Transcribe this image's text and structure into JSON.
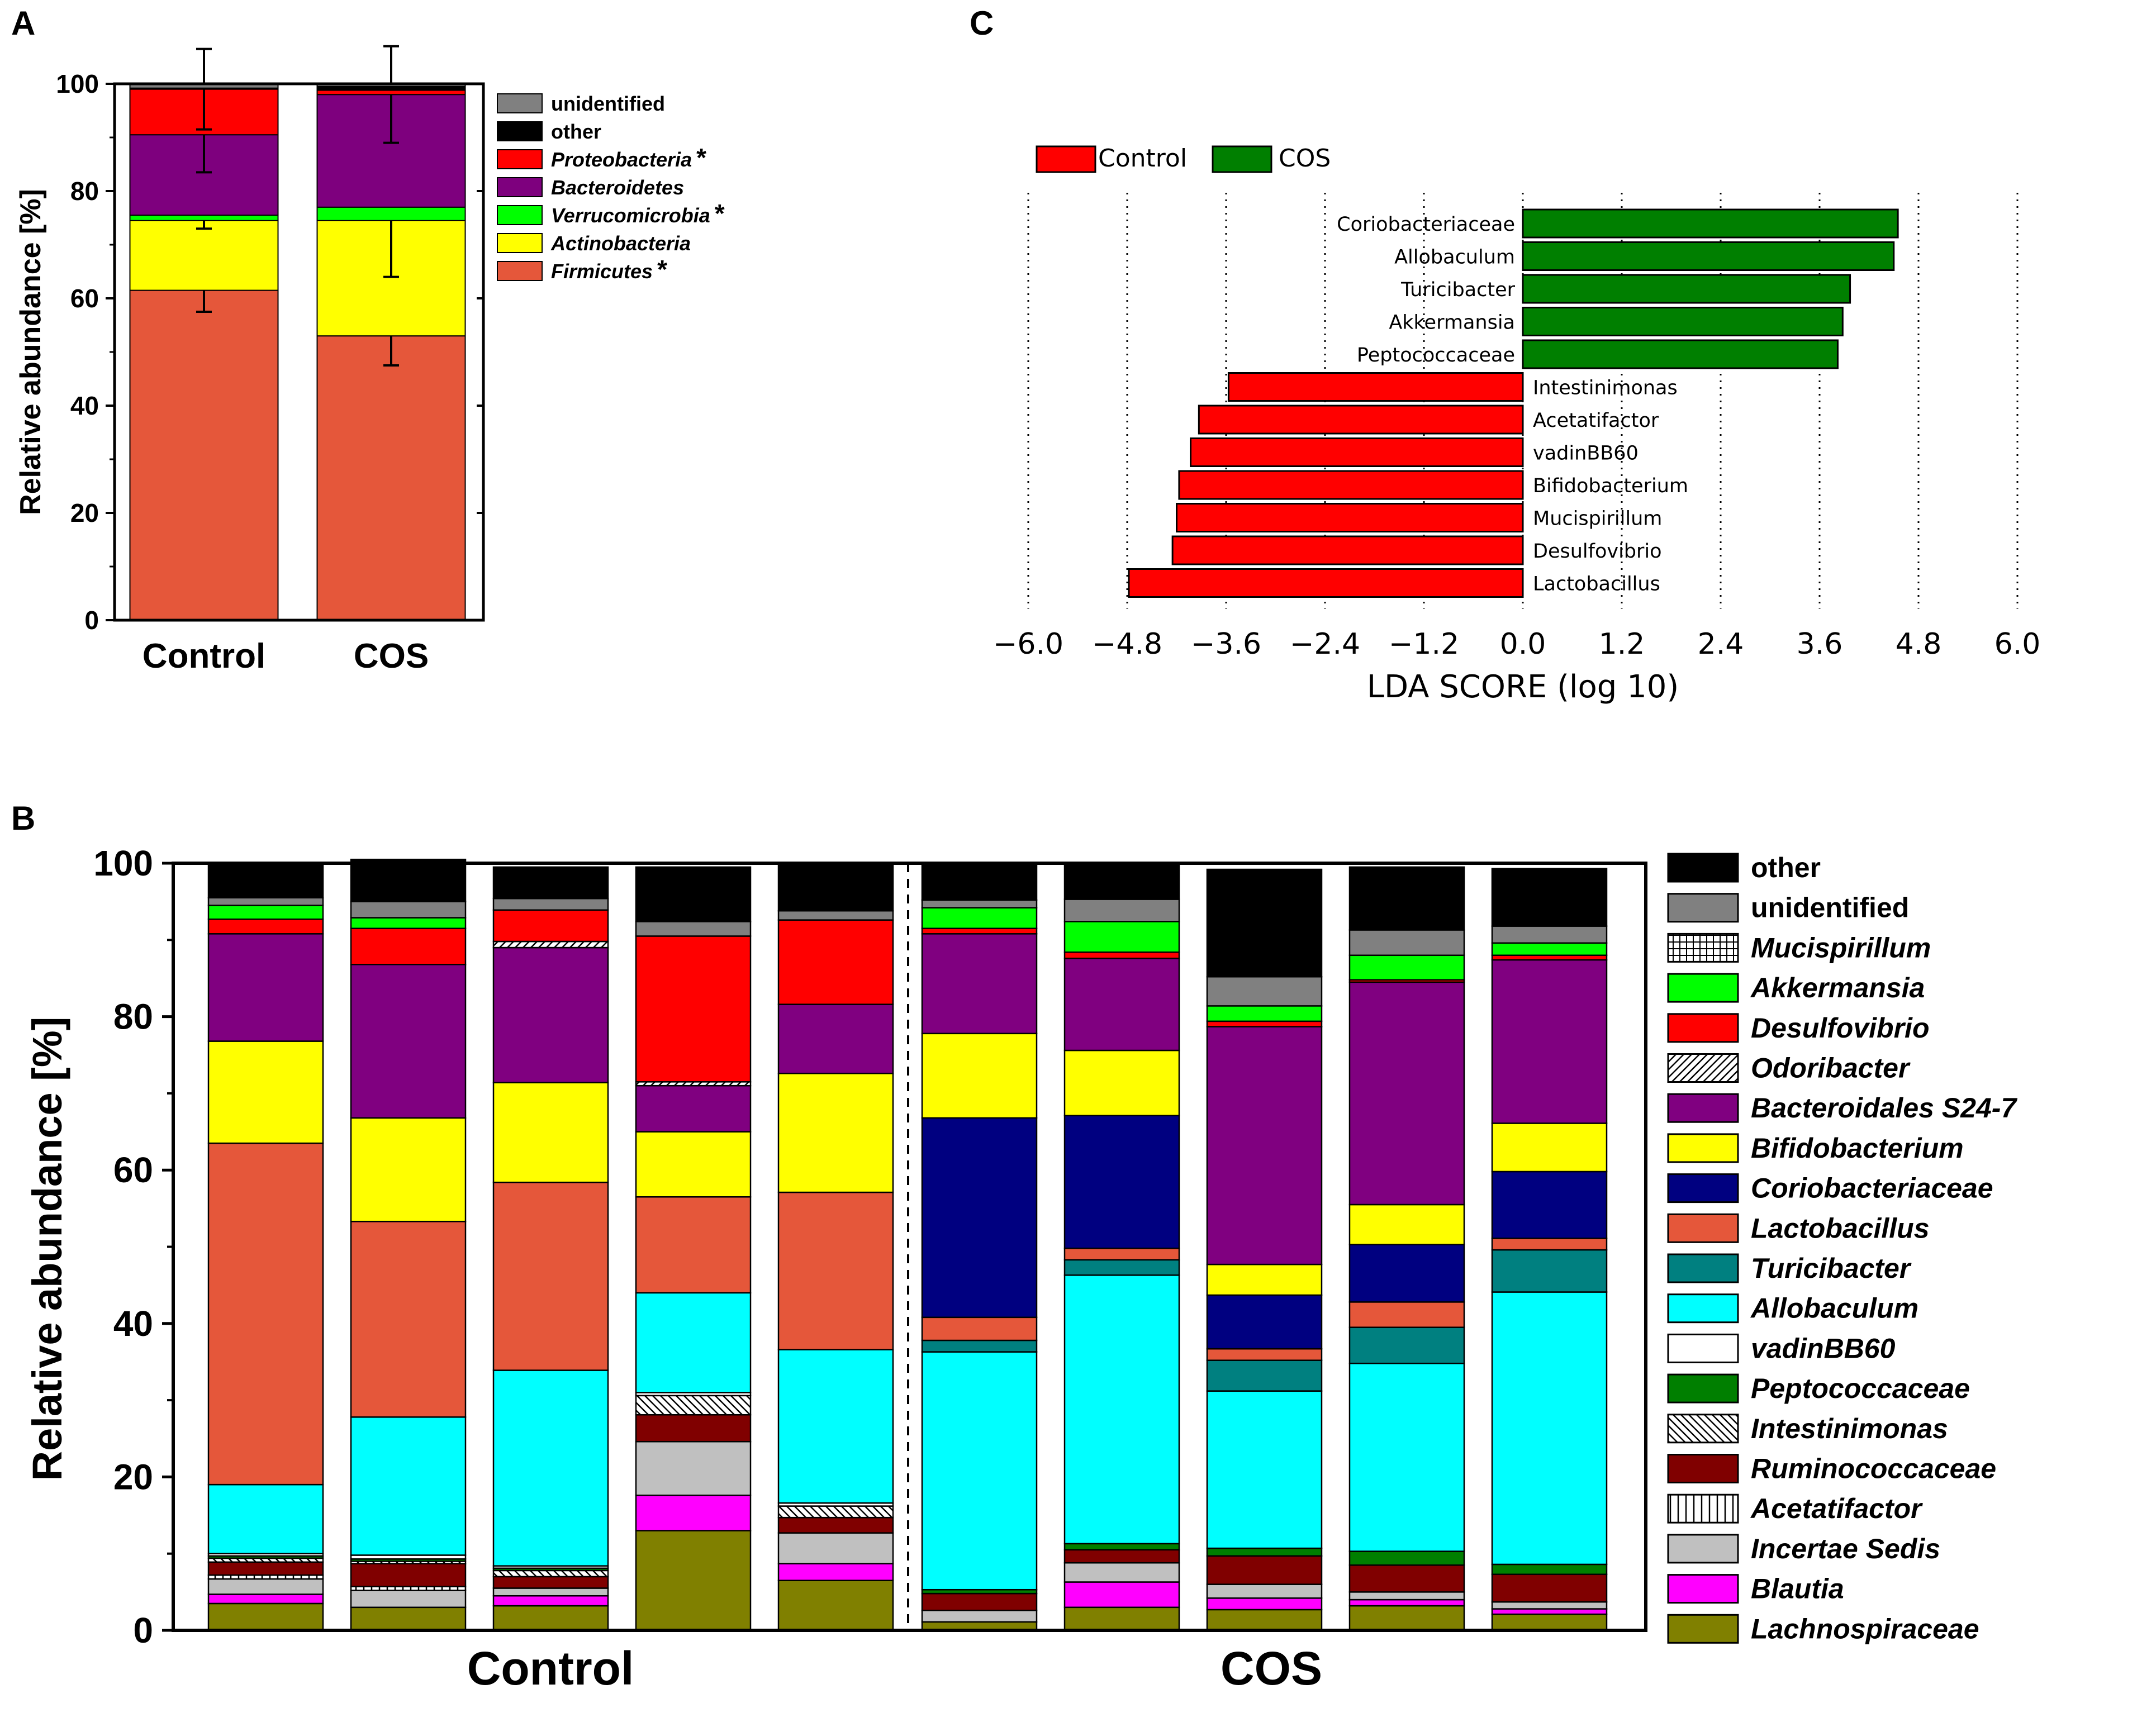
{
  "panel_letters": {
    "a": "A",
    "b": "B",
    "c": "C"
  },
  "chart_data": [
    {
      "id": "A",
      "type": "bar",
      "stacked": true,
      "ylabel": "Relative abundance [%]",
      "ylim": [
        0,
        100
      ],
      "yticks": [
        "0",
        "20",
        "40",
        "60",
        "80",
        "100"
      ],
      "categories": [
        "Control",
        "COS"
      ],
      "series": [
        {
          "name": "Firmicutes",
          "italic": true,
          "significant": true,
          "color": "#E5573A",
          "values": [
            61.5,
            53.0
          ],
          "errors": [
            4.0,
            5.5
          ]
        },
        {
          "name": "Actinobacteria",
          "italic": true,
          "significant": false,
          "color": "#FFFF00",
          "values": [
            13.0,
            21.5
          ],
          "errors": [
            1.5,
            10.5
          ]
        },
        {
          "name": "Verrucomicrobia",
          "italic": true,
          "significant": true,
          "color": "#00FF00",
          "values": [
            1.0,
            2.5
          ],
          "errors": [
            0,
            0
          ]
        },
        {
          "name": "Bacteroidetes",
          "italic": true,
          "significant": false,
          "color": "#7E007E",
          "values": [
            15.0,
            21.0
          ],
          "errors": [
            7.0,
            9.0
          ]
        },
        {
          "name": "Proteobacteria",
          "italic": true,
          "significant": true,
          "color": "#FF0000",
          "values": [
            8.5,
            0.8
          ],
          "errors": [
            7.5,
            0
          ]
        },
        {
          "name": "other",
          "italic": false,
          "significant": false,
          "color": "#000000",
          "values": [
            0.2,
            0.7
          ],
          "errors": [
            0,
            0
          ]
        },
        {
          "name": "unidentified",
          "italic": false,
          "significant": false,
          "color": "#808080",
          "values": [
            0.8,
            0.5
          ],
          "errors": [
            0,
            0
          ]
        }
      ],
      "significance_marker": "*",
      "legend_order": [
        "unidentified",
        "other",
        "Proteobacteria",
        "Bacteroidetes",
        "Verrucomicrobia",
        "Actinobacteria",
        "Firmicutes"
      ],
      "legend_position": "right"
    },
    {
      "id": "C",
      "type": "bar",
      "orientation": "horizontal",
      "xlabel": "LDA SCORE (log 10)",
      "xlim": [
        -6.0,
        6.0
      ],
      "xticks": [
        "−6.0",
        "−4.8",
        "−3.6",
        "−2.4",
        "−1.2",
        "0.0",
        "1.2",
        "2.4",
        "3.6",
        "4.8",
        "6.0"
      ],
      "legend": [
        {
          "name": "Control",
          "color": "#FF0000"
        },
        {
          "name": "COS",
          "color": "#008000"
        }
      ],
      "legend_position": "top-left",
      "grid": "vertical dotted",
      "bars": [
        {
          "name": "Coriobacteriaceae",
          "group": "COS",
          "value": 4.55
        },
        {
          "name": "Allobaculum",
          "group": "COS",
          "value": 4.5
        },
        {
          "name": "Turicibacter",
          "group": "COS",
          "value": 3.97
        },
        {
          "name": "Akkermansia",
          "group": "COS",
          "value": 3.88
        },
        {
          "name": "Peptococcaceae",
          "group": "COS",
          "value": 3.82
        },
        {
          "name": "Intestinimonas",
          "group": "Control",
          "value": -3.57
        },
        {
          "name": "Acetatifactor",
          "group": "Control",
          "value": -3.93
        },
        {
          "name": "vadinBB60",
          "group": "Control",
          "value": -4.03
        },
        {
          "name": "Bifidobacterium",
          "group": "Control",
          "value": -4.17
        },
        {
          "name": "Mucispirillum",
          "group": "Control",
          "value": -4.2
        },
        {
          "name": "Desulfovibrio",
          "group": "Control",
          "value": -4.25
        },
        {
          "name": "Lactobacillus",
          "group": "Control",
          "value": -4.78
        }
      ]
    },
    {
      "id": "B",
      "type": "bar",
      "stacked": true,
      "ylabel": "Relative abundance [%]",
      "ylim": [
        0,
        100
      ],
      "yticks": [
        "0",
        "20",
        "40",
        "60",
        "80",
        "100"
      ],
      "groups": [
        {
          "label": "Control",
          "samples": 5
        },
        {
          "label": "COS",
          "samples": 5
        }
      ],
      "taxa": [
        {
          "name": "Lachnospiraceae",
          "color": "#808000",
          "pattern": ""
        },
        {
          "name": "Blautia",
          "color": "#FF00FF",
          "pattern": ""
        },
        {
          "name": "Incertae Sedis",
          "color": "#C0C0C0",
          "pattern": ""
        },
        {
          "name": "Acetatifactor",
          "color": "#FFFFFF",
          "pattern": "vert"
        },
        {
          "name": "Ruminococcaceae",
          "color": "#800000",
          "pattern": ""
        },
        {
          "name": "Intestinimonas",
          "color": "#FFFFFF",
          "pattern": "backdiag"
        },
        {
          "name": "Peptococcaceae",
          "color": "#007F00",
          "pattern": ""
        },
        {
          "name": "vadinBB60",
          "color": "#FFFFFF",
          "pattern": ""
        },
        {
          "name": "Allobaculum",
          "color": "#00FFFF",
          "pattern": ""
        },
        {
          "name": "Turicibacter",
          "color": "#008080",
          "pattern": ""
        },
        {
          "name": "Lactobacillus",
          "color": "#E5573A",
          "pattern": ""
        },
        {
          "name": "Coriobacteriaceae",
          "color": "#000080",
          "pattern": ""
        },
        {
          "name": "Bifidobacterium",
          "color": "#FFFF00",
          "pattern": ""
        },
        {
          "name": "Bacteroidales S24-7",
          "color": "#800080",
          "pattern": ""
        },
        {
          "name": "Odoribacter",
          "color": "#FFFFFF",
          "pattern": "fwddiag"
        },
        {
          "name": "Desulfovibrio",
          "color": "#FF0000",
          "pattern": ""
        },
        {
          "name": "Akkermansia",
          "color": "#00FF00",
          "pattern": ""
        },
        {
          "name": "Mucispirillum",
          "color": "#FFFFFF",
          "pattern": "grid"
        },
        {
          "name": "unidentified",
          "color": "#808080",
          "pattern": ""
        },
        {
          "name": "other",
          "color": "#000000",
          "pattern": ""
        }
      ],
      "legend_order": [
        "other",
        "unidentified",
        "Mucispirillum",
        "Akkermansia",
        "Desulfovibrio",
        "Odoribacter",
        "Bacteroidales S24-7",
        "Bifidobacterium",
        "Coriobacteriaceae",
        "Lactobacillus",
        "Turicibacter",
        "Allobaculum",
        "vadinBB60",
        "Peptococcaceae",
        "Intestinimonas",
        "Ruminococcaceae",
        "Acetatifactor",
        "Incertae Sedis",
        "Blautia",
        "Lachnospiraceae"
      ],
      "legend_position": "right",
      "samples_values": [
        [
          3.5,
          1.2,
          2.0,
          0.5,
          1.7,
          0.5,
          0.3,
          0.3,
          9.0,
          0,
          44.5,
          0,
          13.3,
          14.0,
          0,
          1.9,
          1.8,
          0,
          1.0,
          4.5
        ],
        [
          3.0,
          0,
          2.2,
          0.5,
          3.0,
          0.3,
          0.3,
          0.5,
          18.0,
          0,
          25.5,
          0,
          13.5,
          20.0,
          0,
          4.7,
          1.4,
          0,
          2.1,
          5.5
        ],
        [
          3.2,
          1.3,
          1.0,
          0,
          1.5,
          0.8,
          0.3,
          0.3,
          25.5,
          0,
          24.5,
          0,
          13.0,
          17.6,
          0.8,
          4.1,
          0,
          0,
          1.5,
          4.1
        ],
        [
          13.0,
          4.6,
          7.0,
          0,
          3.5,
          2.5,
          0,
          0.4,
          13.0,
          0,
          12.5,
          0,
          8.5,
          6.0,
          0.5,
          19.0,
          0,
          0,
          1.9,
          7.1
        ],
        [
          6.5,
          2.2,
          4.0,
          0,
          2.0,
          1.5,
          0,
          0.4,
          20.0,
          0,
          20.5,
          0,
          15.5,
          9.0,
          0,
          11.0,
          0,
          0,
          1.2,
          6.2
        ],
        [
          1.1,
          0,
          1.5,
          0,
          2.2,
          0,
          0.5,
          0,
          31.0,
          1.5,
          3.0,
          26.0,
          11.0,
          13.0,
          0,
          0.7,
          2.7,
          0,
          1.0,
          4.8
        ],
        [
          3.0,
          3.3,
          2.5,
          0,
          1.7,
          0,
          0.8,
          0,
          35.0,
          2.0,
          1.5,
          17.3,
          8.5,
          12.0,
          0,
          0.8,
          4.0,
          0,
          2.9,
          4.7
        ],
        [
          2.7,
          1.5,
          1.8,
          0,
          3.7,
          0,
          1.0,
          0,
          20.5,
          4.0,
          1.5,
          7.0,
          4.0,
          31.0,
          0,
          0.7,
          2.0,
          0,
          3.8,
          14.0
        ],
        [
          3.2,
          0.8,
          1.0,
          0,
          3.5,
          0,
          1.8,
          0,
          24.5,
          4.7,
          3.3,
          7.5,
          5.2,
          29.0,
          0,
          0.3,
          3.2,
          0,
          3.3,
          8.2
        ],
        [
          2.1,
          0.7,
          0.9,
          0,
          3.6,
          0,
          1.3,
          0,
          35.5,
          5.5,
          1.5,
          8.7,
          6.3,
          21.3,
          0,
          0.6,
          1.6,
          0,
          2.2,
          7.5
        ]
      ]
    }
  ]
}
